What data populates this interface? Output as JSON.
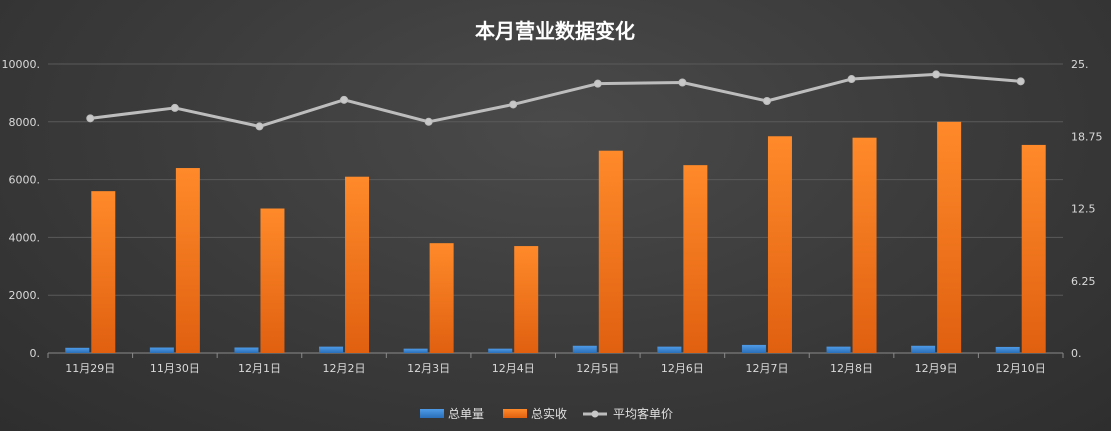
{
  "chart_data": {
    "type": "bar",
    "title": "本月营业数据变化",
    "categories": [
      "11月29日",
      "11月30日",
      "12月1日",
      "12月2日",
      "12月3日",
      "12月4日",
      "12月5日",
      "12月6日",
      "12月7日",
      "12月8日",
      "12月9日",
      "12月10日"
    ],
    "series": [
      {
        "name": "总单量",
        "type": "bar",
        "axis": "left",
        "color": "#3a86d4",
        "values": [
          180,
          190,
          190,
          220,
          150,
          150,
          250,
          220,
          280,
          220,
          250,
          210
        ]
      },
      {
        "name": "总实收",
        "type": "bar",
        "axis": "left",
        "color": "#f07820",
        "values": [
          5600,
          6400,
          5000,
          6100,
          3800,
          3700,
          7000,
          6500,
          7500,
          7450,
          8000,
          7200
        ]
      },
      {
        "name": "平均客单价",
        "type": "line",
        "axis": "right",
        "color": "#bfbfbf",
        "values": [
          20.3,
          21.2,
          19.6,
          21.9,
          20.0,
          21.5,
          23.3,
          23.4,
          21.8,
          23.7,
          24.1,
          23.5
        ]
      }
    ],
    "y_left": {
      "ylim": [
        0,
        10000
      ],
      "ticks": [
        "0.",
        "2000.",
        "4000.",
        "6000.",
        "8000.",
        "10000."
      ]
    },
    "y_right": {
      "ylim": [
        0,
        25
      ],
      "ticks": [
        "0.",
        "6.25",
        "12.5",
        "18.75",
        "25."
      ]
    },
    "grid": true,
    "legend_position": "bottom"
  }
}
